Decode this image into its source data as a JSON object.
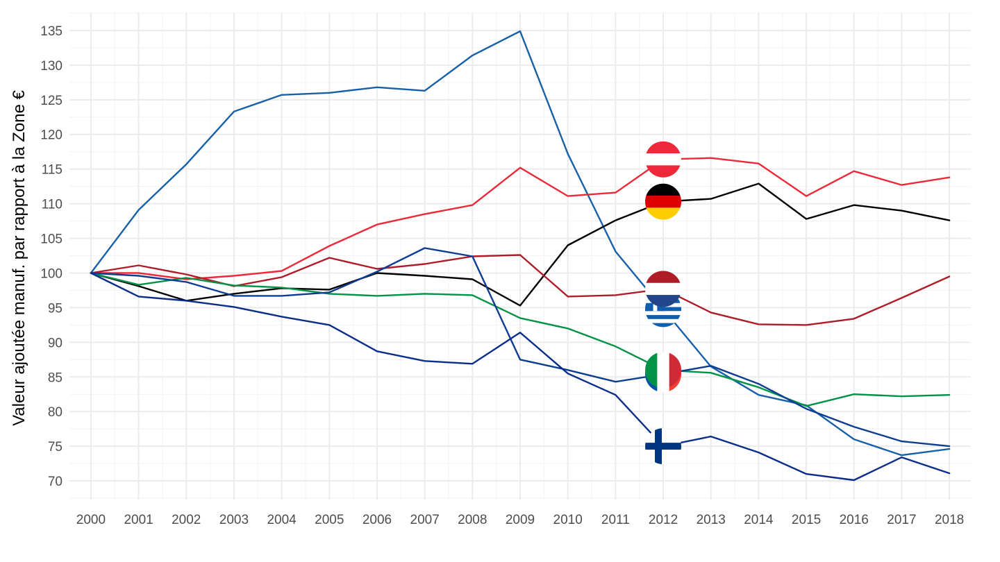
{
  "chart_data": {
    "type": "line",
    "title": "",
    "xlabel": "",
    "ylabel": "Valeur ajoutée manuf. par rapport à la Zone €",
    "x": [
      "2000",
      "2001",
      "2002",
      "2003",
      "2004",
      "2005",
      "2006",
      "2007",
      "2008",
      "2009",
      "2010",
      "2011",
      "2012",
      "2013",
      "2014",
      "2015",
      "2016",
      "2017",
      "2018"
    ],
    "xlim": [
      1999.55,
      2018.45
    ],
    "ylim": [
      67.3,
      137.6
    ],
    "yticks": [
      70,
      75,
      80,
      85,
      90,
      95,
      100,
      105,
      110,
      115,
      120,
      125,
      130,
      135
    ],
    "ytick_labels": [
      "70",
      "75",
      "80",
      "85",
      "90",
      "95",
      "100",
      "105",
      "110",
      "115",
      "120",
      "125",
      "130",
      "135"
    ],
    "grid": true,
    "legend": "flag-icons-at-2012",
    "flag_year": 2012,
    "series": [
      {
        "color": "#1660a9",
        "flag": "greece-flag-icon",
        "values": [
          100,
          109.1,
          115.7,
          123.3,
          125.7,
          126.0,
          126.8,
          126.3,
          131.4,
          134.9,
          117.2,
          103.1,
          94.8,
          86.5,
          82.4,
          80.9,
          76.0,
          73.7,
          74.6
        ]
      },
      {
        "color": "#ed2939",
        "flag": "austria-flag-icon",
        "values": [
          100,
          100.0,
          99.1,
          99.6,
          100.3,
          103.9,
          107.0,
          108.5,
          109.8,
          115.2,
          111.1,
          111.6,
          116.4,
          116.6,
          115.8,
          111.1,
          114.7,
          112.7,
          113.8
        ]
      },
      {
        "color": "#000000",
        "flag": "germany-flag-icon",
        "values": [
          100,
          98.1,
          96.0,
          97.0,
          97.8,
          97.6,
          100.0,
          99.6,
          99.1,
          95.3,
          104.0,
          107.6,
          110.3,
          110.7,
          112.9,
          107.8,
          109.8,
          109.0,
          107.6
        ]
      },
      {
        "color": "#ae1c28",
        "flag": "netherlands-flag-icon",
        "values": [
          100,
          101.1,
          99.8,
          98.1,
          99.4,
          102.2,
          100.6,
          101.3,
          102.4,
          102.6,
          96.6,
          96.8,
          97.7,
          94.3,
          92.6,
          92.5,
          93.4,
          96.4,
          99.5
        ]
      },
      {
        "color": "#009246",
        "flag": "italy-flag-icon",
        "values": [
          100,
          98.3,
          99.3,
          98.2,
          97.9,
          97.0,
          96.7,
          97.0,
          96.8,
          93.5,
          92.0,
          89.4,
          86.0,
          85.6,
          83.5,
          80.8,
          82.5,
          82.2,
          82.4
        ]
      },
      {
        "color": "#0d3d91",
        "flag": "france-flag-icon",
        "values": [
          100,
          99.6,
          98.7,
          96.7,
          96.7,
          97.2,
          100.2,
          103.6,
          102.4,
          87.5,
          86.0,
          84.3,
          85.4,
          86.6,
          84.0,
          80.4,
          77.8,
          75.7,
          75.0
        ]
      },
      {
        "color": "#0a2d8a",
        "flag": "finland-flag-icon",
        "values": [
          100,
          96.6,
          96.0,
          95.1,
          93.7,
          92.5,
          88.7,
          87.3,
          86.9,
          91.4,
          85.5,
          82.4,
          75.0,
          76.4,
          74.1,
          71.0,
          70.1,
          73.4,
          71.1
        ]
      }
    ]
  }
}
